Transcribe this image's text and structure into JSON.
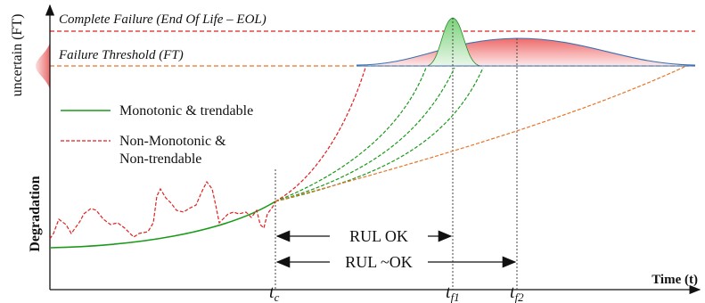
{
  "labels": {
    "eol": "Complete Failure (End Of Life – EOL)",
    "ft": "Failure Threshold (FT)",
    "uncertain": "uncertain (FT)",
    "degradation": "Degradation",
    "time": "Time (t)"
  },
  "legend": {
    "mono": "Monotonic & trendable",
    "nonmono_line1": "Non-Monotonic &",
    "nonmono_line2": "Non-trendable"
  },
  "rul": {
    "ok": "RUL OK",
    "approx": "RUL ~OK"
  },
  "ticks": {
    "tc_base": "t",
    "tc_sub": "c",
    "tf1_base": "t",
    "tf1_sub": "f1",
    "tf2_base": "t",
    "tf2_sub": "f2"
  },
  "colors": {
    "green": "#1a9a1a",
    "red": "#e02020",
    "orange": "#e8742a",
    "blue": "#3a6fb5",
    "black": "#111111"
  }
}
